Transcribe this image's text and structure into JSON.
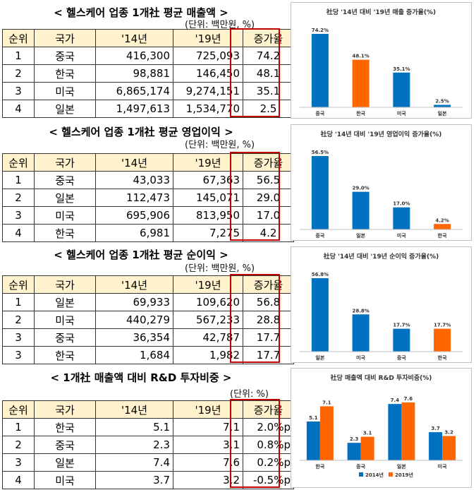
{
  "colors": {
    "header_bg": "#fff2cc",
    "highlight": "#c00000",
    "bar_blue": "#0070c0",
    "bar_orange": "#ff6600"
  },
  "sections": [
    {
      "title": "< 헬스케어 업종 1개社 평균 매출액 >",
      "unit": "(단위: 백만원, %)",
      "headers": [
        "순위",
        "국가",
        "'14년",
        "'19년",
        "증가율"
      ],
      "rows": [
        [
          "1",
          "중국",
          "416,300",
          "725,093",
          "74.2"
        ],
        [
          "2",
          "한국",
          "98,881",
          "146,450",
          "48.1"
        ],
        [
          "3",
          "미국",
          "6,865,174",
          "9,274,151",
          "35.1"
        ],
        [
          "4",
          "일본",
          "1,497,613",
          "1,534,770",
          "2.5"
        ]
      ]
    },
    {
      "title": "< 헬스케어 업종 1개社 평균 영업이익 >",
      "unit": "(단위: 백만원, %)",
      "headers": [
        "순위",
        "국가",
        "'14년",
        "'19년",
        "증가율"
      ],
      "rows": [
        [
          "1",
          "중국",
          "43,033",
          "67,363",
          "56.5"
        ],
        [
          "2",
          "일본",
          "112,473",
          "145,071",
          "29.0"
        ],
        [
          "3",
          "미국",
          "695,906",
          "813,950",
          "17.0"
        ],
        [
          "4",
          "한국",
          "6,981",
          "7,275",
          "4.2"
        ]
      ]
    },
    {
      "title": "< 헬스케어 업종 1개社 평균 순이익 >",
      "unit": "(단위: 백만원, %)",
      "headers": [
        "순위",
        "국가",
        "'14년",
        "'19년",
        "증가율"
      ],
      "rows": [
        [
          "1",
          "일본",
          "69,933",
          "109,620",
          "56.8"
        ],
        [
          "2",
          "미국",
          "440,279",
          "567,233",
          "28.8"
        ],
        [
          "3",
          "중국",
          "36,354",
          "42,787",
          "17.7"
        ],
        [
          "3",
          "한국",
          "1,684",
          "1,982",
          "17.7"
        ]
      ]
    },
    {
      "title": "< 1개社 매출액 대비 R&D 투자비중 >",
      "unit": "(단위: %)",
      "headers": [
        "순위",
        "국가",
        "'14년",
        "'19년",
        "증가율"
      ],
      "rows": [
        [
          "1",
          "한국",
          "5.1",
          "7.1",
          "2.0%p"
        ],
        [
          "2",
          "중국",
          "2.3",
          "3.1",
          "0.8%p"
        ],
        [
          "3",
          "일본",
          "7.4",
          "7.6",
          "0.2%p"
        ],
        [
          "4",
          "미국",
          "3.7",
          "3.2",
          "-0.5%p"
        ]
      ]
    }
  ],
  "chart_data": [
    {
      "type": "bar",
      "title": "社당 '14년 대비 '19년 매출 증가율(%)",
      "categories": [
        "중국",
        "한국",
        "미국",
        "일본"
      ],
      "series": [
        {
          "values": [
            74.2,
            48.1,
            35.1,
            2.5
          ]
        }
      ],
      "bar_colors": [
        "blue",
        "orange",
        "blue",
        "blue"
      ],
      "value_labels": [
        "74.2%",
        "48.1%",
        "35.1%",
        "2.5%"
      ]
    },
    {
      "type": "bar",
      "title": "社당 '14년 대비 '19년 영업이익 증가율(%)",
      "categories": [
        "중국",
        "일본",
        "미국",
        "한국"
      ],
      "series": [
        {
          "values": [
            56.5,
            29.0,
            17.0,
            4.2
          ]
        }
      ],
      "bar_colors": [
        "blue",
        "blue",
        "blue",
        "orange"
      ],
      "value_labels": [
        "56.5%",
        "29.0%",
        "17.0%",
        "4.2%"
      ]
    },
    {
      "type": "bar",
      "title": "社당 '14년 대비 '19년 순이익 증가율(%)",
      "categories": [
        "일본",
        "미국",
        "중국",
        "한국"
      ],
      "series": [
        {
          "values": [
            56.8,
            28.8,
            17.7,
            17.7
          ]
        }
      ],
      "bar_colors": [
        "blue",
        "blue",
        "blue",
        "orange"
      ],
      "value_labels": [
        "56.8%",
        "28.8%",
        "17.7%",
        "17.7%"
      ]
    },
    {
      "type": "bar",
      "title": "社당 매출액 대비 R&D 투자비중(%)",
      "categories": [
        "한국",
        "중국",
        "일본",
        "미국"
      ],
      "series": [
        {
          "name": "2014년",
          "values": [
            5.1,
            2.3,
            7.4,
            3.7
          ]
        },
        {
          "name": "2019년",
          "values": [
            7.1,
            3.1,
            7.6,
            3.2
          ]
        }
      ],
      "legend": "bottom"
    }
  ]
}
